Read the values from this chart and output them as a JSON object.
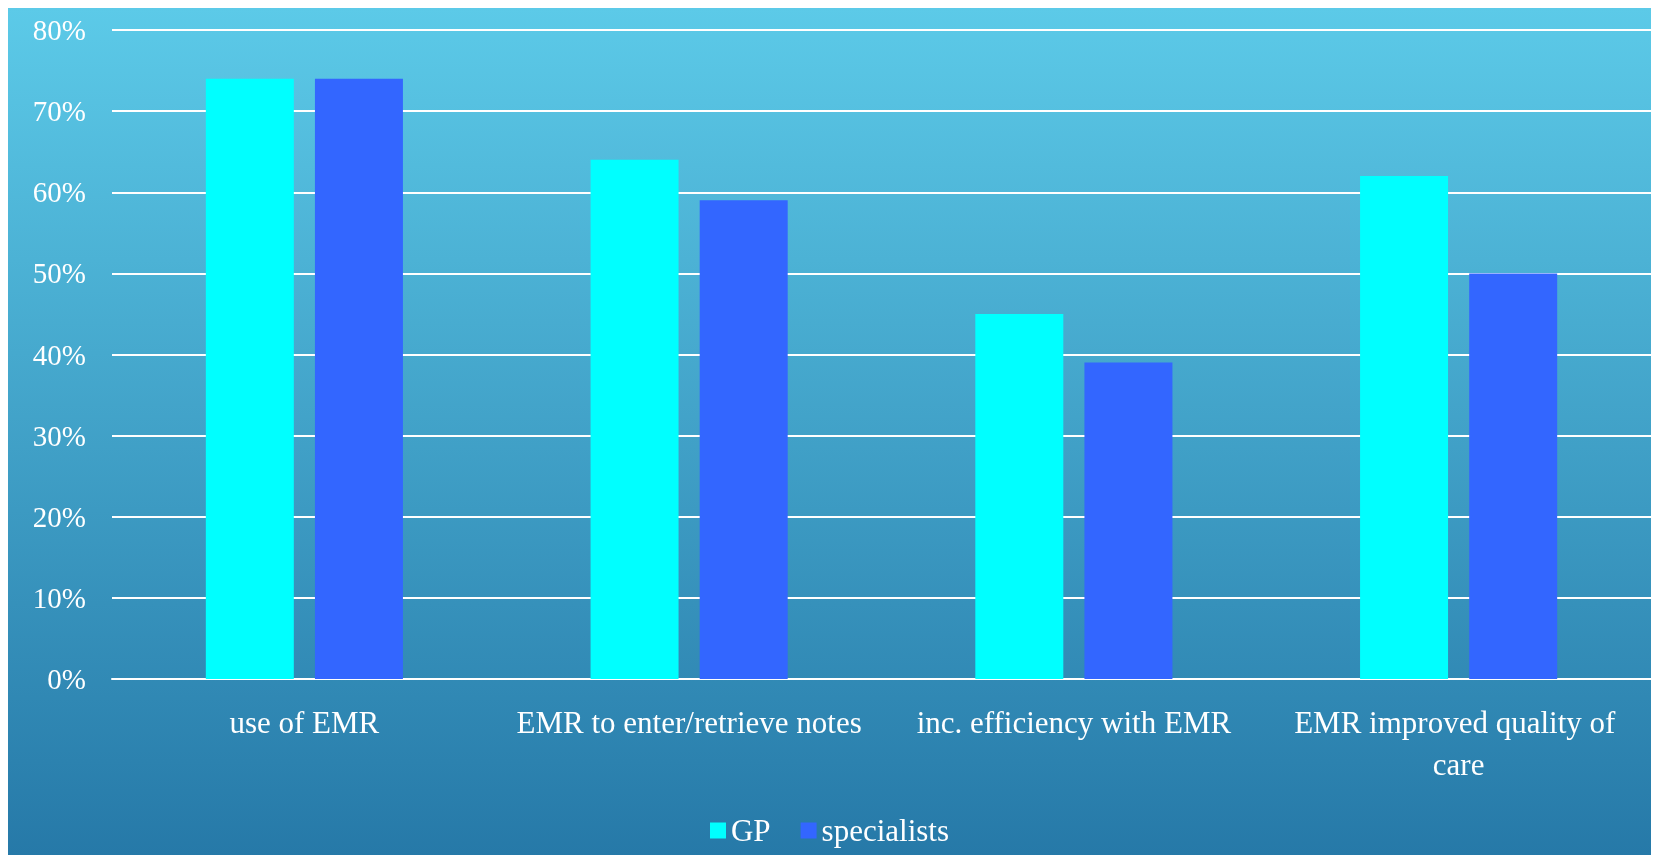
{
  "chart_data": {
    "type": "bar",
    "categories": [
      "use of EMR",
      "EMR to enter/retrieve notes",
      "inc. efficiency with EMR",
      "EMR improved quality of care"
    ],
    "series": [
      {
        "name": "GP",
        "color": "#00ffff",
        "values": [
          74,
          64,
          45,
          62
        ]
      },
      {
        "name": "specialists",
        "color": "#3366ff",
        "values": [
          74,
          59,
          39,
          50
        ]
      }
    ],
    "ylim": [
      0,
      80
    ],
    "yticks": [
      {
        "value": 0,
        "label": "0%"
      },
      {
        "value": 10,
        "label": "10%"
      },
      {
        "value": 20,
        "label": "20%"
      },
      {
        "value": 30,
        "label": "30%"
      },
      {
        "value": 40,
        "label": "40%"
      },
      {
        "value": 50,
        "label": "50%"
      },
      {
        "value": 60,
        "label": "60%"
      },
      {
        "value": 70,
        "label": "70%"
      },
      {
        "value": 80,
        "label": "80%"
      }
    ],
    "grid": "y",
    "legend": "bottom"
  }
}
